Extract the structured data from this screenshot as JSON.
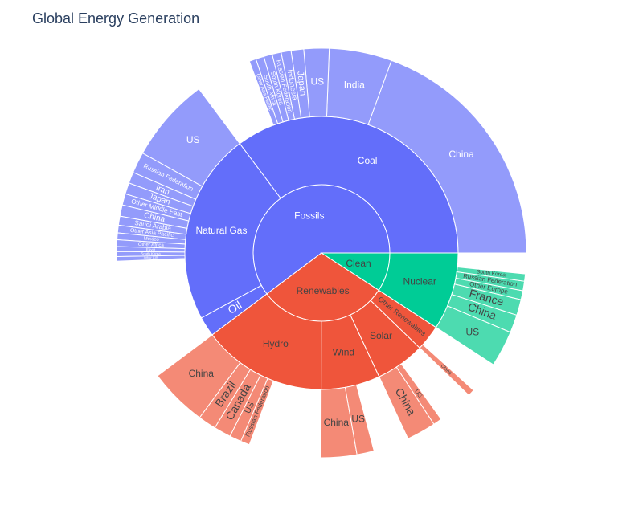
{
  "chart_data": {
    "type": "sunburst",
    "title": "Global Energy Generation",
    "nodes": [
      {
        "label": "Fossils",
        "value": 16940,
        "color": "#636efa",
        "leaf_color": "#939bfb",
        "text_color": "#ffffff",
        "children": [
          {
            "label": "Coal",
            "value": 9900,
            "children": [
              {
                "label": "China",
                "value": 5470
              },
              {
                "label": "India",
                "value": 1390
              },
              {
                "label": "US",
                "value": 560
              },
              {
                "label": "Japan",
                "value": 280
              },
              {
                "label": "Indonesia",
                "value": 220
              },
              {
                "label": "Russian Federation",
                "value": 200
              },
              {
                "label": "South Korea",
                "value": 190
              },
              {
                "label": "South Africa",
                "value": 180
              },
              {
                "label": "Other Asia Pacific",
                "value": 150
              }
            ]
          },
          {
            "label": "Natural Gas",
            "value": 6380,
            "children": [
              {
                "label": "US",
                "value": 1880
              },
              {
                "label": "Russian Federation",
                "value": 470
              },
              {
                "label": "Iran",
                "value": 250
              },
              {
                "label": "Japan",
                "value": 250
              },
              {
                "label": "Other Middle East",
                "value": 250
              },
              {
                "label": "China",
                "value": 250
              },
              {
                "label": "Saudi Arabia",
                "value": 200
              },
              {
                "label": "Other Asia Pacific",
                "value": 170
              },
              {
                "label": "Mexico",
                "value": 150
              },
              {
                "label": "Other Africa",
                "value": 150
              },
              {
                "label": "Egypt",
                "value": 110
              },
              {
                "label": "South Korea",
                "value": 110
              },
              {
                "label": "Other CIS",
                "value": 100
              }
            ]
          },
          {
            "label": "Oil",
            "value": 660,
            "children": []
          }
        ]
      },
      {
        "label": "Renewables",
        "value": 8600,
        "color": "#ef553b",
        "leaf_color": "#f48a76",
        "text_color": "#444444",
        "children": [
          {
            "label": "Hydro",
            "value": 4140,
            "children": [
              {
                "label": "China",
                "value": 1300
              },
              {
                "label": "Brazil",
                "value": 400
              },
              {
                "label": "Canada",
                "value": 380
              },
              {
                "label": "US",
                "value": 260
              },
              {
                "label": "Russian Federation",
                "value": 200
              }
            ]
          },
          {
            "label": "Wind",
            "value": 1960,
            "children": [
              {
                "label": "China",
                "value": 790
              },
              {
                "label": "US",
                "value": 380
              }
            ]
          },
          {
            "label": "Solar",
            "value": 1640,
            "children": [
              {
                "label": "China",
                "value": 650
              },
              {
                "label": "US",
                "value": 190
              }
            ]
          },
          {
            "label": "Other Renewables",
            "value": 860,
            "children": [
              {
                "label": "China",
                "value": 150
              }
            ]
          }
        ]
      },
      {
        "label": "Clean",
        "value": 2580,
        "color": "#00cc96",
        "leaf_color": "#4ddbb0",
        "text_color": "#444444",
        "children": [
          {
            "label": "Nuclear",
            "value": 2580,
            "children": [
              {
                "label": "US",
                "value": 800
              },
              {
                "label": "China",
                "value": 400
              },
              {
                "label": "France",
                "value": 350
              },
              {
                "label": "Other Europe",
                "value": 200
              },
              {
                "label": "Russian Federation",
                "value": 210
              },
              {
                "label": "South Korea",
                "value": 160
              }
            ]
          }
        ]
      }
    ]
  }
}
